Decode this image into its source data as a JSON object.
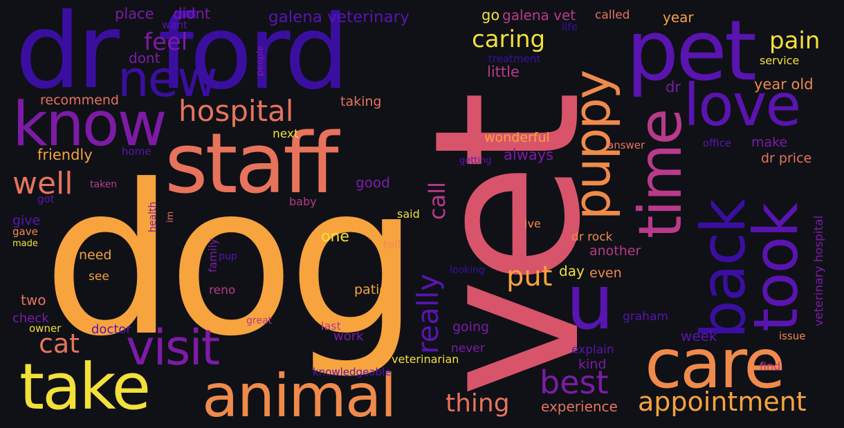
{
  "background": "#0f1117",
  "palette": {
    "yellow": "#f3e03a",
    "light_orange": "#f7a33e",
    "orange": "#f08a4b",
    "salmon": "#e8735c",
    "pink": "#d8546a",
    "magenta": "#b93a8a",
    "purple": "#7d1ba6",
    "violet": "#5a14b0",
    "indigo": "#3a0fa0"
  },
  "words": {
    "dr": {
      "text": "dr",
      "color": "#3a0fa0"
    },
    "ford": {
      "text": "ford",
      "color": "#3a0fa0"
    },
    "vet": {
      "text": "vet",
      "color": "#d8546a"
    },
    "dog": {
      "text": "dog",
      "color": "#f7a33e"
    },
    "staff": {
      "text": "staff",
      "color": "#e8735c"
    },
    "pet": {
      "text": "pet",
      "color": "#5a14b0"
    },
    "take": {
      "text": "take",
      "color": "#f3e03a"
    },
    "animal": {
      "text": "animal",
      "color": "#f08a4b"
    },
    "care": {
      "text": "care",
      "color": "#f08a4b"
    },
    "know": {
      "text": "know",
      "color": "#7d1ba6"
    },
    "new": {
      "text": "new",
      "color": "#3a0fa0"
    },
    "visit": {
      "text": "visit",
      "color": "#7d1ba6"
    },
    "time": {
      "text": "time",
      "color": "#b93a8a"
    },
    "puppy": {
      "text": "puppy",
      "color": "#f08a4b"
    },
    "u": {
      "text": "u",
      "color": "#5a14b0"
    },
    "love": {
      "text": "love",
      "color": "#5a14b0"
    },
    "back": {
      "text": "back",
      "color": "#3a0fa0"
    },
    "took": {
      "text": "took",
      "color": "#5a14b0"
    },
    "hospital": {
      "text": "hospital",
      "color": "#e8735c"
    },
    "well": {
      "text": "well",
      "color": "#e8735c"
    },
    "best": {
      "text": "best",
      "color": "#7d1ba6"
    },
    "appointment": {
      "text": "appointment",
      "color": "#f7a33e"
    },
    "cat": {
      "text": "cat",
      "color": "#e8735c"
    },
    "put": {
      "text": "put",
      "color": "#f7a33e"
    },
    "thing": {
      "text": "thing",
      "color": "#e8735c"
    },
    "really": {
      "text": "really",
      "color": "#5a14b0"
    },
    "call": {
      "text": "call",
      "color": "#b93a8a"
    },
    "caring": {
      "text": "caring",
      "color": "#f3e03a"
    },
    "pain": {
      "text": "pain",
      "color": "#f3e03a"
    },
    "feel": {
      "text": "feel",
      "color": "#7d1ba6"
    },
    "galena_veterinary": {
      "text": "galena veterinary",
      "color": "#5a14b0"
    },
    "place": {
      "text": "place",
      "color": "#7d1ba6"
    },
    "didnt": {
      "text": "didnt",
      "color": "#7d1ba6"
    },
    "want": {
      "text": "want",
      "color": "#5a14b0"
    },
    "dont": {
      "text": "dont",
      "color": "#7d1ba6"
    },
    "recommend": {
      "text": "recommend",
      "color": "#e8735c"
    },
    "taking": {
      "text": "taking",
      "color": "#e8735c"
    },
    "friendly": {
      "text": "friendly",
      "color": "#f7a33e"
    },
    "home": {
      "text": "home",
      "color": "#5a14b0"
    },
    "next": {
      "text": "next",
      "color": "#f3e03a"
    },
    "taken": {
      "text": "taken",
      "color": "#b93a8a"
    },
    "got": {
      "text": "got",
      "color": "#5a14b0"
    },
    "good": {
      "text": "good",
      "color": "#7d1ba6"
    },
    "baby": {
      "text": "baby",
      "color": "#b93a8a"
    },
    "health": {
      "text": "health",
      "color": "#7d1ba6"
    },
    "im": {
      "text": "im",
      "color": "#e8735c"
    },
    "said": {
      "text": "said",
      "color": "#f3e03a"
    },
    "give": {
      "text": "give",
      "color": "#5a14b0"
    },
    "gave": {
      "text": "gave",
      "color": "#f08a4b"
    },
    "made": {
      "text": "made",
      "color": "#f3e03a"
    },
    "one": {
      "text": "one",
      "color": "#f3e03a"
    },
    "tell": {
      "text": "tell",
      "color": "#f08a4b"
    },
    "need": {
      "text": "need",
      "color": "#f7a33e"
    },
    "family": {
      "text": "family",
      "color": "#7d1ba6"
    },
    "pup": {
      "text": "pup",
      "color": "#5a14b0"
    },
    "see": {
      "text": "see",
      "color": "#f7a33e"
    },
    "reno": {
      "text": "reno",
      "color": "#b93a8a"
    },
    "two": {
      "text": "two",
      "color": "#e8735c"
    },
    "check": {
      "text": "check",
      "color": "#7d1ba6"
    },
    "owner": {
      "text": "owner",
      "color": "#f3e03a"
    },
    "doctor": {
      "text": "doctor",
      "color": "#5a14b0"
    },
    "great": {
      "text": "great",
      "color": "#b93a8a"
    },
    "last": {
      "text": "last",
      "color": "#b93a8a"
    },
    "work": {
      "text": "work",
      "color": "#7d1ba6"
    },
    "patient": {
      "text": "patient",
      "color": "#f7a33e"
    },
    "going": {
      "text": "going",
      "color": "#7d1ba6"
    },
    "never": {
      "text": "never",
      "color": "#7d1ba6"
    },
    "veterinarian": {
      "text": "veterinarian",
      "color": "#f3e03a"
    },
    "knowledgeable": {
      "text": "knowledgeable",
      "color": "#5a14b0"
    },
    "looking": {
      "text": "looking",
      "color": "#3a0fa0"
    },
    "experience": {
      "text": "experience",
      "color": "#e8735c"
    },
    "go": {
      "text": "go",
      "color": "#f3e03a"
    },
    "galena_vet": {
      "text": "galena vet",
      "color": "#b93a8a"
    },
    "called": {
      "text": "called",
      "color": "#e8735c"
    },
    "year": {
      "text": "year",
      "color": "#f7a33e"
    },
    "life": {
      "text": "life",
      "color": "#3a0fa0"
    },
    "treatment": {
      "text": "treatment",
      "color": "#3a0fa0"
    },
    "people": {
      "text": "people",
      "color": "#7d1ba6"
    },
    "little": {
      "text": "little",
      "color": "#b93a8a"
    },
    "service": {
      "text": "service",
      "color": "#f3e03a"
    },
    "dr_small": {
      "text": "dr",
      "color": "#7d1ba6"
    },
    "year_old": {
      "text": "year old",
      "color": "#f08a4b"
    },
    "wonderful": {
      "text": "wonderful",
      "color": "#f7a33e"
    },
    "answer": {
      "text": "answer",
      "color": "#e8735c"
    },
    "always": {
      "text": "always",
      "color": "#7d1ba6"
    },
    "getting": {
      "text": "getting",
      "color": "#5a14b0"
    },
    "office": {
      "text": "office",
      "color": "#5a14b0"
    },
    "make": {
      "text": "make",
      "color": "#7d1ba6"
    },
    "dr_price": {
      "text": "dr price",
      "color": "#e8735c"
    },
    "veterinary_hospital": {
      "text": "veterinary hospital",
      "color": "#7d1ba6"
    },
    "ive": {
      "text": "ive",
      "color": "#f08a4b"
    },
    "dr_rock": {
      "text": "dr rock",
      "color": "#f08a4b"
    },
    "another": {
      "text": "another",
      "color": "#b93a8a"
    },
    "day": {
      "text": "day",
      "color": "#f3e03a"
    },
    "even": {
      "text": "even",
      "color": "#f08a4b"
    },
    "graham": {
      "text": "graham",
      "color": "#5a14b0"
    },
    "week": {
      "text": "week",
      "color": "#5a14b0"
    },
    "issue": {
      "text": "issue",
      "color": "#f08a4b"
    },
    "explain": {
      "text": "explain",
      "color": "#5a14b0"
    },
    "kind": {
      "text": "kind",
      "color": "#7d1ba6"
    },
    "find": {
      "text": "find",
      "color": "#b93a8a"
    }
  }
}
